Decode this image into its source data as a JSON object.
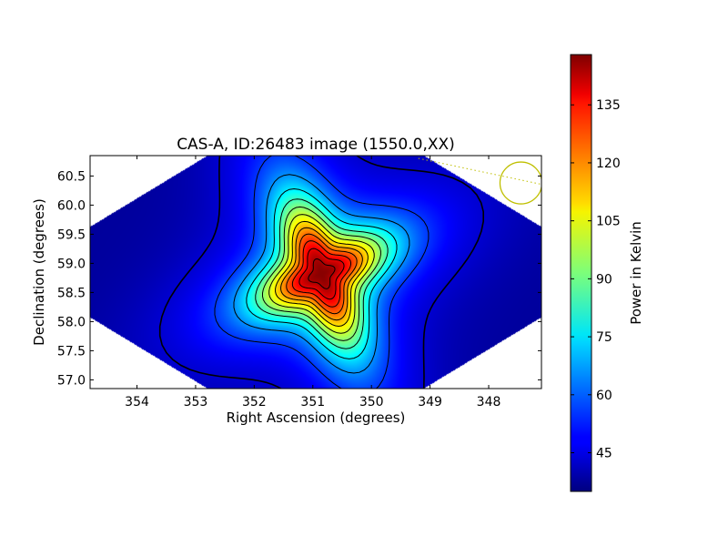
{
  "chart_data": {
    "type": "heatmap",
    "title": "CAS-A, ID:26483 image (1550.0,XX)",
    "xlabel": "Right Ascension (degrees)",
    "ylabel": "Declination (degrees)",
    "xlim": [
      354.8,
      347.1
    ],
    "ylim": [
      56.85,
      60.85
    ],
    "x_reversed": true,
    "x_ticks": [
      354,
      353,
      352,
      351,
      350,
      349,
      348
    ],
    "y_ticks": [
      57.0,
      57.5,
      58.0,
      58.5,
      59.0,
      59.5,
      60.0,
      60.5
    ],
    "colorbar": {
      "label": "Power in Kelvin",
      "range": [
        35,
        148
      ],
      "ticks": [
        45,
        60,
        75,
        90,
        105,
        120,
        135
      ],
      "colormap": "jet"
    },
    "source_peak": {
      "ra": 350.85,
      "dec": 58.82,
      "value": 147
    },
    "background_level": 38,
    "beam_marker": {
      "ra": 347.45,
      "dec": 60.38,
      "color": "#bfbf00"
    },
    "grid": false
  }
}
